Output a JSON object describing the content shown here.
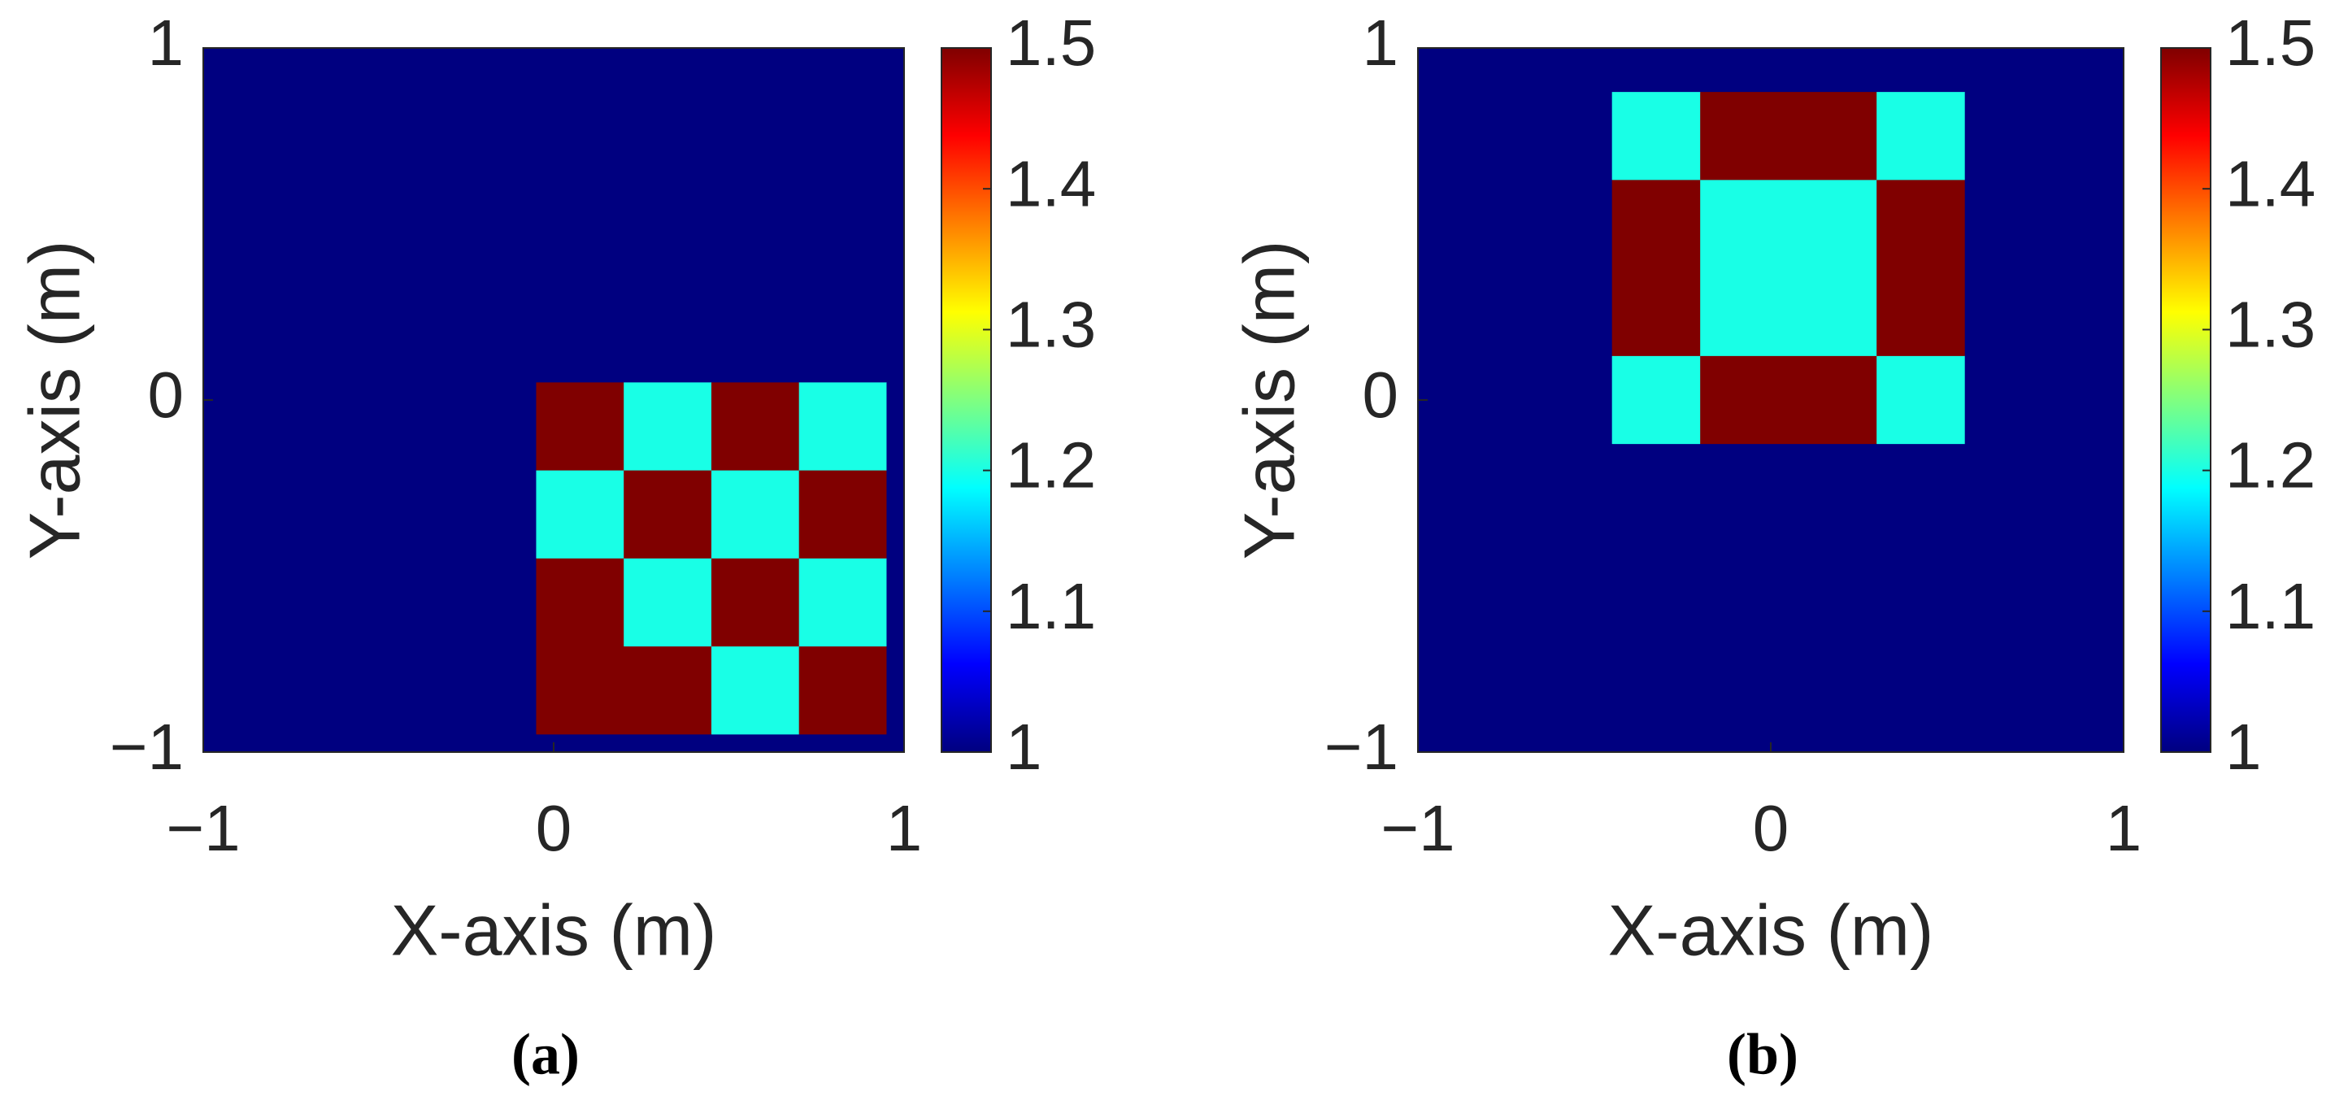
{
  "chart_data": [
    {
      "type": "heatmap",
      "caption": "(a)",
      "xlabel": "X-axis (m)",
      "ylabel": "Y-axis (m)",
      "colormap": "jet",
      "clim": [
        1,
        1.5
      ],
      "cticks": [
        1,
        1.1,
        1.2,
        1.3,
        1.4,
        1.5
      ],
      "xlim": [
        -1,
        1
      ],
      "ylim": [
        -1,
        1
      ],
      "xticks": [
        {
          "value": -1,
          "label": "−1"
        },
        0,
        1
      ],
      "yticks": [
        {
          "value": -1,
          "label": "−1"
        },
        0,
        1
      ],
      "xbins": [
        -1,
        -0.05,
        0.2,
        0.45,
        0.7,
        0.95,
        1
      ],
      "ybins": [
        1,
        0.05,
        -0.2,
        -0.45,
        -0.7,
        -0.95,
        -1
      ],
      "values": [
        [
          1,
          1,
          1,
          1,
          1,
          1
        ],
        [
          1,
          1.5,
          1.2,
          1.5,
          1.2,
          1
        ],
        [
          1,
          1.2,
          1.5,
          1.2,
          1.5,
          1
        ],
        [
          1,
          1.5,
          1.2,
          1.5,
          1.2,
          1
        ],
        [
          1,
          1.5,
          1.5,
          1.2,
          1.5,
          1
        ],
        [
          1,
          1,
          1,
          1,
          1,
          1
        ]
      ]
    },
    {
      "type": "heatmap",
      "caption": "(b)",
      "xlabel": "X-axis (m)",
      "ylabel": "Y-axis (m)",
      "colormap": "jet",
      "clim": [
        1,
        1.5
      ],
      "cticks": [
        1,
        1.1,
        1.2,
        1.3,
        1.4,
        1.5
      ],
      "xlim": [
        -1,
        1
      ],
      "ylim": [
        -1,
        1
      ],
      "xticks": [
        {
          "value": -1,
          "label": "−1"
        },
        0,
        1
      ],
      "yticks": [
        {
          "value": -1,
          "label": "−1"
        },
        0,
        1
      ],
      "xbins": [
        -1,
        -0.45,
        -0.2,
        0.3,
        0.55,
        1
      ],
      "ybins": [
        1,
        0.875,
        0.625,
        0.125,
        -0.125,
        -1
      ],
      "values": [
        [
          1,
          1,
          1,
          1,
          1
        ],
        [
          1,
          1.2,
          1.5,
          1.2,
          1
        ],
        [
          1,
          1.5,
          1.2,
          1.5,
          1
        ],
        [
          1,
          1.2,
          1.5,
          1.2,
          1
        ],
        [
          1,
          1,
          1,
          1,
          1
        ]
      ]
    }
  ]
}
